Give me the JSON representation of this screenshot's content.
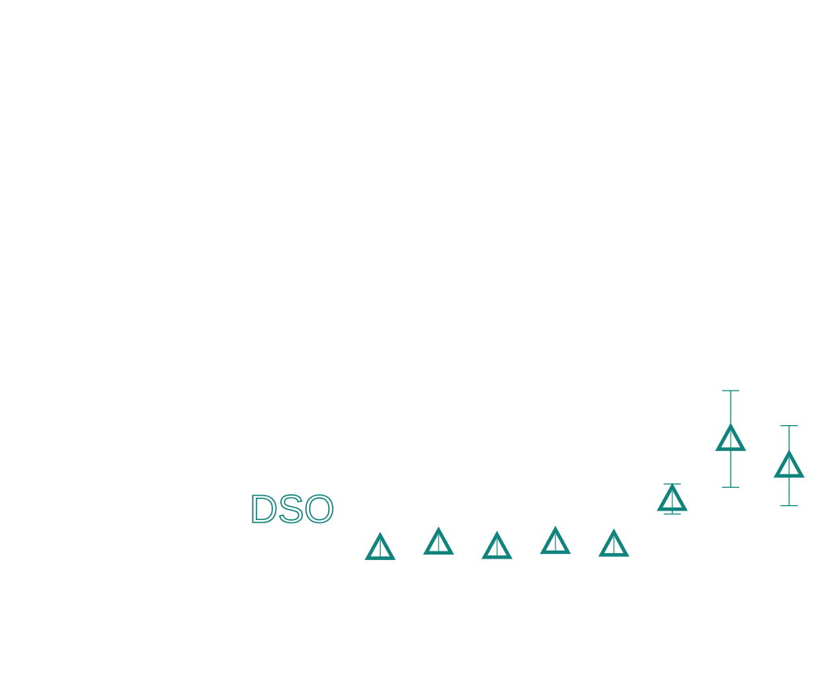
{
  "chart_data": {
    "type": "scatter",
    "title": "",
    "xlabel": "",
    "ylabel": "",
    "x": [
      1,
      2,
      3,
      4,
      5,
      6,
      7,
      8
    ],
    "series": [
      {
        "name": "DSO",
        "color": "#0f837c",
        "marker": "triangle-up",
        "values": [
          0.18,
          0.34,
          0.21,
          0.36,
          0.28,
          1.65,
          3.45,
          2.65
        ],
        "errors": [
          0.02,
          0.03,
          0.02,
          0.03,
          0.02,
          0.45,
          1.45,
          1.2
        ]
      }
    ],
    "xlim": [
      0,
      9
    ],
    "ylim": [
      -1.5,
      14.5
    ],
    "grid": false,
    "axes_visible": false
  }
}
